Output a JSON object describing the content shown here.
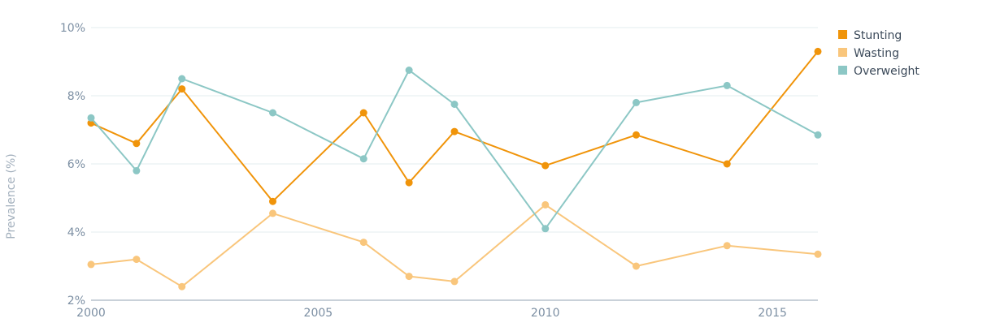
{
  "chart_data": {
    "type": "line",
    "title": "",
    "xlabel": "",
    "ylabel": "Prevalence (%)",
    "xlim": [
      2000,
      2016
    ],
    "ylim": [
      2,
      10
    ],
    "x_ticks": [
      2000,
      2005,
      2010,
      2015
    ],
    "x_tick_labels": [
      "2000",
      "2005",
      "2010",
      "2015"
    ],
    "y_ticks": [
      2,
      4,
      6,
      8,
      10
    ],
    "y_tick_labels": [
      "2%",
      "4%",
      "6%",
      "8%",
      "10%"
    ],
    "grid": true,
    "legend_position": "top-right",
    "series": [
      {
        "name": "Stunting",
        "color": "#f0940a",
        "points": [
          [
            2000,
            7.2
          ],
          [
            2001,
            6.6
          ],
          [
            2002,
            8.2
          ],
          [
            2004,
            4.9
          ],
          [
            2006,
            7.5
          ],
          [
            2007,
            5.45
          ],
          [
            2008,
            6.95
          ],
          [
            2010,
            5.95
          ],
          [
            2012,
            6.85
          ],
          [
            2014,
            6.0
          ],
          [
            2016,
            9.3
          ]
        ]
      },
      {
        "name": "Wasting",
        "color": "#f9c67c",
        "points": [
          [
            2000,
            3.05
          ],
          [
            2001,
            3.2
          ],
          [
            2002,
            2.4
          ],
          [
            2004,
            4.55
          ],
          [
            2006,
            3.7
          ],
          [
            2007,
            2.7
          ],
          [
            2008,
            2.55
          ],
          [
            2010,
            4.8
          ],
          [
            2012,
            3.0
          ],
          [
            2014,
            3.6
          ],
          [
            2016,
            3.35
          ]
        ]
      },
      {
        "name": "Overweight",
        "color": "#8cc7c5",
        "points": [
          [
            2000,
            7.35
          ],
          [
            2001,
            5.8
          ],
          [
            2002,
            8.5
          ],
          [
            2004,
            7.5
          ],
          [
            2006,
            6.15
          ],
          [
            2007,
            8.75
          ],
          [
            2008,
            7.75
          ],
          [
            2010,
            4.1
          ],
          [
            2012,
            7.8
          ],
          [
            2014,
            8.3
          ],
          [
            2016,
            6.85
          ]
        ]
      }
    ]
  }
}
